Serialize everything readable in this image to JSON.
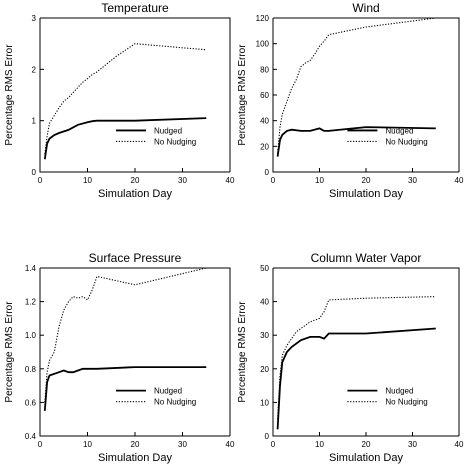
{
  "chart_data": [
    {
      "type": "line",
      "title": "Temperature",
      "xlabel": "Simulation Day",
      "ylabel": "Percentage RMS Error",
      "xlim": [
        0,
        40
      ],
      "ylim": [
        0,
        3
      ],
      "x_ticks": [
        0,
        10,
        20,
        30,
        40
      ],
      "y_ticks": [
        0,
        1,
        2,
        3
      ],
      "x_tick_labels": [
        "0",
        "10",
        "20",
        "30",
        "40"
      ],
      "y_tick_labels": [
        "0",
        "1",
        "2",
        "3"
      ],
      "grid": false,
      "legend": "bottom-right",
      "series": [
        {
          "name": "Nudged",
          "style": "solid",
          "x": [
            1,
            1.5,
            2,
            3,
            4,
            6,
            8,
            10,
            11,
            12,
            20,
            35
          ],
          "y": [
            0.25,
            0.55,
            0.65,
            0.72,
            0.76,
            0.82,
            0.92,
            0.97,
            0.99,
            1.0,
            1.0,
            1.05
          ]
        },
        {
          "name": "No Nudging",
          "style": "dotted",
          "x": [
            1,
            1.5,
            2,
            3,
            4,
            5,
            6,
            7,
            8,
            9,
            10,
            11,
            12,
            14,
            16,
            20,
            35
          ],
          "y": [
            0.35,
            0.7,
            0.95,
            1.1,
            1.25,
            1.38,
            1.45,
            1.55,
            1.65,
            1.75,
            1.82,
            1.9,
            1.95,
            2.1,
            2.25,
            2.5,
            2.38
          ]
        }
      ]
    },
    {
      "type": "line",
      "title": "Wind",
      "xlabel": "Simulation Day",
      "ylabel": "Percentage RMS Error",
      "xlim": [
        0,
        40
      ],
      "ylim": [
        0,
        120
      ],
      "x_ticks": [
        0,
        10,
        20,
        30,
        40
      ],
      "y_ticks": [
        0,
        20,
        40,
        60,
        80,
        100,
        120
      ],
      "x_tick_labels": [
        "0",
        "10",
        "20",
        "30",
        "40"
      ],
      "y_tick_labels": [
        "0",
        "20",
        "40",
        "60",
        "80",
        "100",
        "120"
      ],
      "grid": false,
      "legend": "bottom-right",
      "series": [
        {
          "name": "Nudged",
          "style": "solid",
          "x": [
            1,
            1.5,
            2,
            3,
            4,
            6,
            8,
            10,
            11,
            12,
            20,
            35
          ],
          "y": [
            12,
            25,
            29,
            32,
            33,
            32,
            32,
            34,
            32,
            32,
            35,
            34
          ]
        },
        {
          "name": "No Nudging",
          "style": "dotted",
          "x": [
            1,
            1.5,
            2,
            3,
            4,
            5,
            6,
            7,
            8,
            9,
            10,
            11,
            12,
            20,
            35
          ],
          "y": [
            15,
            35,
            45,
            55,
            65,
            72,
            82,
            85,
            87,
            92,
            98,
            102,
            107,
            113,
            120
          ]
        }
      ]
    },
    {
      "type": "line",
      "title": "Surface Pressure",
      "xlabel": "Simulation Day",
      "ylabel": "Percentage RMS Error",
      "xlim": [
        0,
        40
      ],
      "ylim": [
        0.4,
        1.4
      ],
      "x_ticks": [
        0,
        10,
        20,
        30,
        40
      ],
      "y_ticks": [
        0.4,
        0.6,
        0.8,
        1.0,
        1.2,
        1.4
      ],
      "x_tick_labels": [
        "0",
        "10",
        "20",
        "30",
        "40"
      ],
      "y_tick_labels": [
        "0.4",
        "0.6",
        "0.8",
        "1.0",
        "1.2",
        "1.4"
      ],
      "grid": false,
      "legend": "bottom-right",
      "series": [
        {
          "name": "Nudged",
          "style": "solid",
          "x": [
            1,
            1.5,
            2,
            3,
            4,
            5,
            6,
            7,
            8,
            9,
            10,
            11,
            12,
            20,
            35
          ],
          "y": [
            0.55,
            0.72,
            0.76,
            0.77,
            0.78,
            0.79,
            0.78,
            0.78,
            0.79,
            0.8,
            0.8,
            0.8,
            0.8,
            0.81,
            0.81
          ]
        },
        {
          "name": "No Nudging",
          "style": "dotted",
          "x": [
            1,
            1.5,
            2,
            3,
            4,
            5,
            6,
            7,
            8,
            9,
            10,
            11,
            12,
            20,
            35
          ],
          "y": [
            0.6,
            0.78,
            0.85,
            0.9,
            1.05,
            1.15,
            1.2,
            1.23,
            1.22,
            1.23,
            1.21,
            1.27,
            1.35,
            1.3,
            1.4
          ]
        }
      ]
    },
    {
      "type": "line",
      "title": "Column Water Vapor",
      "xlabel": "Simulation Day",
      "ylabel": "Percentage RMS Error",
      "xlim": [
        0,
        40
      ],
      "ylim": [
        0,
        50
      ],
      "x_ticks": [
        0,
        10,
        20,
        30,
        40
      ],
      "y_ticks": [
        0,
        10,
        20,
        30,
        40,
        50
      ],
      "x_tick_labels": [
        "0",
        "10",
        "20",
        "30",
        "40"
      ],
      "y_tick_labels": [
        "0",
        "10",
        "20",
        "30",
        "40",
        "50"
      ],
      "grid": false,
      "legend": "bottom-right",
      "series": [
        {
          "name": "Nudged",
          "style": "solid",
          "x": [
            1,
            1.5,
            2,
            3,
            4,
            6,
            8,
            10,
            11,
            12,
            20,
            35
          ],
          "y": [
            2,
            15,
            22,
            25,
            26.5,
            28.5,
            29.5,
            29.5,
            29,
            30.5,
            30.5,
            32
          ]
        },
        {
          "name": "No Nudging",
          "style": "dotted",
          "x": [
            1,
            1.5,
            2,
            3,
            4,
            5,
            6,
            7,
            8,
            9,
            10,
            11,
            12,
            20,
            35
          ],
          "y": [
            5,
            18,
            24,
            27,
            29,
            31,
            32,
            33,
            34,
            34.5,
            35,
            37,
            40.5,
            41,
            41.5
          ]
        }
      ]
    }
  ]
}
